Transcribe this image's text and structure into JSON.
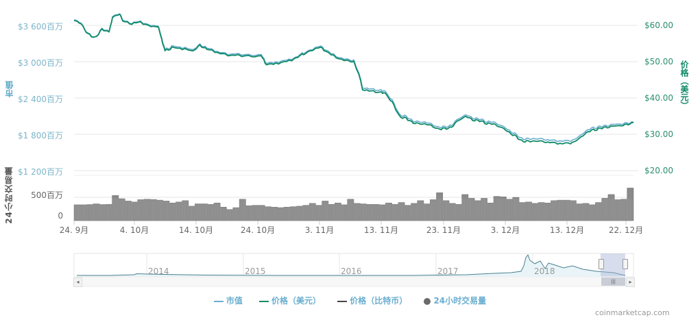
{
  "chart_data": {
    "type": "line",
    "title": "",
    "x": [
      "24. 9月",
      "4. 10月",
      "14. 10月",
      "24. 10月",
      "3. 11月",
      "13. 11月",
      "23. 11月",
      "3. 12月",
      "13. 12月",
      "22. 12月"
    ],
    "xlabel": "",
    "y_left": {
      "label": "市值",
      "ticks": [
        "$3 600百万",
        "$3 000百万",
        "$2 400百万",
        "$1 800百万",
        "$1 200百万"
      ],
      "range": [
        1200,
        3600
      ],
      "unit": "百万 USD"
    },
    "y_right": {
      "label": "价格（美元）",
      "ticks": [
        "$60.00",
        "$50.00",
        "$40.00",
        "$30.00",
        "$20.00"
      ],
      "range": [
        20,
        60
      ]
    },
    "y_volume": {
      "label": "24小时交易量",
      "ticks": [
        "500百万",
        "0"
      ]
    },
    "grid": true,
    "legend_position": "bottom",
    "series": [
      {
        "name": "市值",
        "color": "#6aaed0",
        "points": [
          [
            0,
            3690
          ],
          [
            4,
            3640
          ],
          [
            8,
            3460
          ],
          [
            12,
            3400
          ],
          [
            16,
            3540
          ],
          [
            20,
            3510
          ],
          [
            22,
            3740
          ],
          [
            26,
            3800
          ],
          [
            28,
            3680
          ],
          [
            33,
            3640
          ],
          [
            38,
            3660
          ],
          [
            44,
            3590
          ],
          [
            48,
            3600
          ],
          [
            50,
            3400
          ],
          [
            52,
            3200
          ],
          [
            56,
            3250
          ],
          [
            62,
            3230
          ],
          [
            68,
            3200
          ],
          [
            72,
            3280
          ],
          [
            76,
            3230
          ],
          [
            82,
            3160
          ],
          [
            88,
            3120
          ],
          [
            92,
            3130
          ],
          [
            100,
            3110
          ],
          [
            107,
            3110
          ],
          [
            110,
            2980
          ],
          [
            114,
            2980
          ],
          [
            120,
            3010
          ],
          [
            126,
            3050
          ],
          [
            130,
            3130
          ],
          [
            132,
            3150
          ],
          [
            136,
            3200
          ],
          [
            140,
            3260
          ],
          [
            144,
            3200
          ],
          [
            150,
            3090
          ],
          [
            156,
            3040
          ],
          [
            160,
            3020
          ],
          [
            163,
            2800
          ],
          [
            165,
            2580
          ],
          [
            170,
            2540
          ],
          [
            175,
            2530
          ],
          [
            178,
            2510
          ],
          [
            182,
            2360
          ],
          [
            186,
            2130
          ],
          [
            190,
            2090
          ],
          [
            194,
            2020
          ],
          [
            198,
            2000
          ],
          [
            203,
            1990
          ],
          [
            208,
            1920
          ],
          [
            212,
            1920
          ],
          [
            216,
            1950
          ],
          [
            220,
            2060
          ],
          [
            224,
            2120
          ],
          [
            228,
            2070
          ],
          [
            232,
            2050
          ],
          [
            236,
            2010
          ],
          [
            240,
            2000
          ],
          [
            244,
            1950
          ],
          [
            248,
            1880
          ],
          [
            252,
            1810
          ],
          [
            256,
            1730
          ],
          [
            260,
            1720
          ],
          [
            264,
            1730
          ],
          [
            268,
            1720
          ],
          [
            272,
            1700
          ],
          [
            278,
            1680
          ],
          [
            284,
            1690
          ],
          [
            288,
            1740
          ],
          [
            292,
            1840
          ],
          [
            296,
            1900
          ],
          [
            300,
            1920
          ],
          [
            304,
            1940
          ],
          [
            308,
            1960
          ],
          [
            312,
            1970
          ],
          [
            316,
            1980
          ],
          [
            320,
            2000
          ]
        ]
      },
      {
        "name": "价格（美元）",
        "color": "#0f8a66",
        "points": [
          [
            0,
            61.3
          ],
          [
            4,
            60.5
          ],
          [
            8,
            57.5
          ],
          [
            12,
            56.6
          ],
          [
            16,
            58.8
          ],
          [
            20,
            58.3
          ],
          [
            22,
            62.1
          ],
          [
            26,
            63.2
          ],
          [
            28,
            61.1
          ],
          [
            33,
            60.5
          ],
          [
            38,
            60.8
          ],
          [
            44,
            59.6
          ],
          [
            48,
            59.8
          ],
          [
            50,
            56.3
          ],
          [
            52,
            53.0
          ],
          [
            56,
            53.8
          ],
          [
            62,
            53.5
          ],
          [
            68,
            53.0
          ],
          [
            72,
            54.4
          ],
          [
            76,
            53.5
          ],
          [
            82,
            52.4
          ],
          [
            88,
            51.7
          ],
          [
            92,
            51.8
          ],
          [
            100,
            51.5
          ],
          [
            107,
            51.5
          ],
          [
            110,
            49.3
          ],
          [
            114,
            49.3
          ],
          [
            120,
            49.8
          ],
          [
            126,
            50.6
          ],
          [
            130,
            51.9
          ],
          [
            132,
            52.2
          ],
          [
            136,
            53.1
          ],
          [
            140,
            54.0
          ],
          [
            144,
            53.0
          ],
          [
            150,
            51.2
          ],
          [
            156,
            50.3
          ],
          [
            160,
            50.0
          ],
          [
            163,
            46.3
          ],
          [
            165,
            42.5
          ],
          [
            170,
            41.8
          ],
          [
            175,
            41.6
          ],
          [
            178,
            41.3
          ],
          [
            182,
            38.8
          ],
          [
            186,
            35.0
          ],
          [
            190,
            34.3
          ],
          [
            194,
            33.2
          ],
          [
            198,
            32.8
          ],
          [
            203,
            32.7
          ],
          [
            208,
            31.5
          ],
          [
            212,
            31.5
          ],
          [
            216,
            32.0
          ],
          [
            220,
            33.9
          ],
          [
            224,
            34.9
          ],
          [
            228,
            34.0
          ],
          [
            232,
            33.7
          ],
          [
            236,
            33.0
          ],
          [
            240,
            32.8
          ],
          [
            244,
            32.0
          ],
          [
            248,
            30.8
          ],
          [
            252,
            29.6
          ],
          [
            256,
            28.2
          ],
          [
            260,
            28.0
          ],
          [
            264,
            28.2
          ],
          [
            268,
            28.0
          ],
          [
            272,
            27.7
          ],
          [
            278,
            27.3
          ],
          [
            284,
            27.5
          ],
          [
            288,
            28.4
          ],
          [
            292,
            30.1
          ],
          [
            296,
            31.1
          ],
          [
            300,
            31.5
          ],
          [
            304,
            31.9
          ],
          [
            308,
            32.2
          ],
          [
            312,
            32.4
          ],
          [
            316,
            32.6
          ],
          [
            320,
            33.2
          ]
        ]
      },
      {
        "name": "价格（比特币）",
        "color": "#434348",
        "points": []
      },
      {
        "name": "24小时交易量",
        "color": "#7a7a7a",
        "type": "column",
        "values_millions": [
          340,
          340,
          345,
          360,
          345,
          350,
          540,
          470,
          420,
          400,
          450,
          460,
          455,
          440,
          420,
          380,
          400,
          430,
          310,
          360,
          360,
          350,
          380,
          290,
          240,
          280,
          460,
          320,
          330,
          330,
          300,
          290,
          280,
          290,
          300,
          310,
          330,
          370,
          330,
          420,
          350,
          380,
          340,
          460,
          370,
          360,
          350,
          350,
          340,
          380,
          350,
          390,
          330,
          370,
          430,
          360,
          450,
          600,
          430,
          370,
          350,
          560,
          480,
          430,
          480,
          380,
          520,
          510,
          460,
          500,
          390,
          400,
          370,
          390,
          380,
          430,
          440,
          440,
          430,
          360,
          370,
          340,
          390,
          480,
          560,
          450,
          460,
          700
        ]
      }
    ]
  },
  "axes": {
    "left_title": "市值",
    "right_title": "价格（美元）",
    "volume_title": "24小时交易量",
    "left_ticks": [
      "$3 600百万",
      "$3 000百万",
      "$2 400百万",
      "$1 800百万",
      "$1 200百万"
    ],
    "right_ticks": [
      "$60.00",
      "$50.00",
      "$40.00",
      "$30.00",
      "$20.00"
    ],
    "volume_ticks": [
      "500百万",
      "0"
    ],
    "x_ticks": [
      "24. 9月",
      "4. 10月",
      "14. 10月",
      "24. 10月",
      "3. 11月",
      "13. 11月",
      "23. 11月",
      "3. 12月",
      "13. 12月",
      "22. 12月"
    ]
  },
  "navigator": {
    "years": [
      "2014",
      "2015",
      "2016",
      "2017",
      "2018"
    ],
    "scroll_left_arrow": "◂",
    "scroll_right_arrow": "▸",
    "scroll_grip": "|||"
  },
  "legend": {
    "items": [
      {
        "label": "市值",
        "color": "#6aaed0",
        "symbol": "line"
      },
      {
        "label": "价格（美元）",
        "color": "#0f8a66",
        "symbol": "line"
      },
      {
        "label": "价格（比特币）",
        "color": "#434348",
        "symbol": "line"
      },
      {
        "label": "24小时交易量",
        "color": "#6b6b6b",
        "symbol": "dot"
      }
    ]
  },
  "credit": "coinmarketcap.com"
}
